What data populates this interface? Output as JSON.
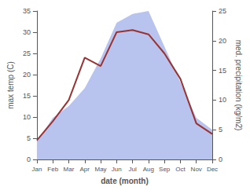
{
  "chart_data": {
    "type": "line",
    "categories": [
      "Jan",
      "Feb",
      "Mar",
      "Apr",
      "May",
      "Jun",
      "Jul",
      "Aug",
      "Sep",
      "Oct",
      "Nov",
      "Dec"
    ],
    "series": [
      {
        "type": "area",
        "axis": "y2",
        "color": "#b8c4ee",
        "values": [
          3.0,
          7.0,
          9.0,
          12.0,
          17.0,
          23.0,
          24.5,
          25.0,
          19.0,
          13.0,
          7.0,
          5.0
        ]
      },
      {
        "type": "line",
        "color": "#993333",
        "values": [
          4.5,
          9.0,
          14.0,
          24.0,
          22.0,
          30.0,
          30.5,
          29.5,
          25.0,
          19.0,
          8.5,
          6.0
        ]
      }
    ],
    "xlabel": "date (month)",
    "ylabel": "max temp (C)",
    "y2label": "med. precipitation (kg/m2)",
    "ylim": [
      0,
      35
    ],
    "yticks": [
      0,
      5,
      10,
      15,
      20,
      25,
      30,
      35
    ],
    "y2lim": [
      0,
      25
    ],
    "y2ticks": [
      0,
      5,
      10,
      15,
      20,
      25
    ],
    "grid": false
  }
}
